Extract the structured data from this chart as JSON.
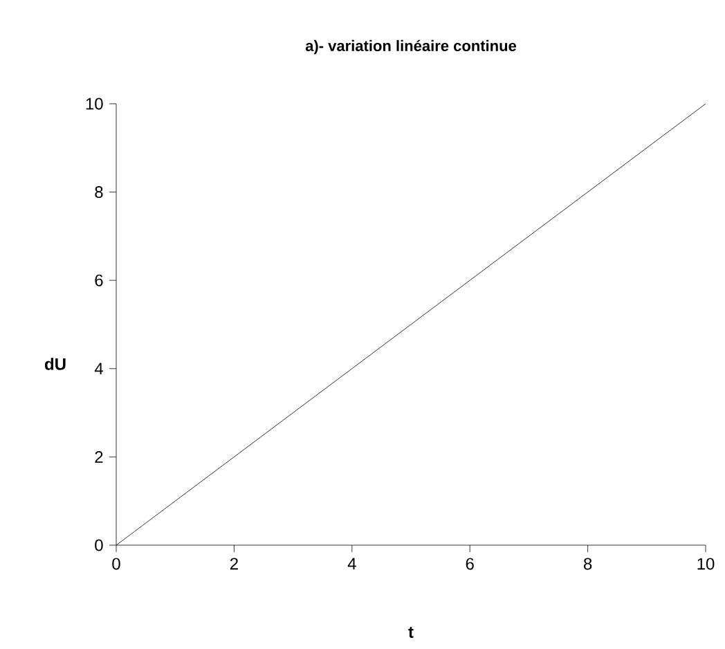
{
  "chart_data": {
    "type": "line",
    "title": "a)- variation linéaire continue",
    "xlabel": "t",
    "ylabel": "dU",
    "x": [
      0,
      10
    ],
    "values": [
      0,
      10
    ],
    "color": "#000000",
    "line_style": "solid",
    "xlim": [
      0,
      10
    ],
    "ylim": [
      0,
      10
    ],
    "xticks": [
      0,
      2,
      4,
      6,
      8,
      10
    ],
    "yticks": [
      0,
      2,
      4,
      6,
      8,
      10
    ]
  }
}
